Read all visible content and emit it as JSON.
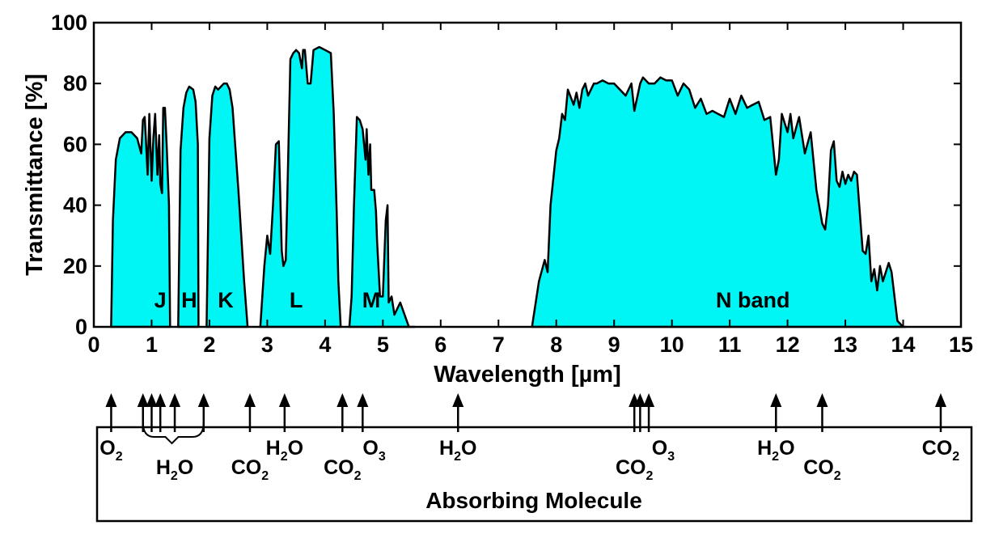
{
  "chart_data": {
    "type": "area",
    "xlabel": "Wavelength [µm]",
    "ylabel": "Transmittance [%]",
    "xlim": [
      0,
      15
    ],
    "ylim": [
      0,
      100
    ],
    "xticks": [
      0,
      1,
      2,
      3,
      4,
      5,
      6,
      7,
      8,
      9,
      10,
      11,
      12,
      13,
      14,
      15
    ],
    "yticks": [
      0,
      20,
      40,
      60,
      80,
      100
    ],
    "fill_color": "#00f5f5",
    "line_color": "#000000",
    "series": [
      {
        "x": [
          0.3,
          0.33,
          0.38,
          0.45,
          0.55,
          0.65,
          0.75,
          0.82,
          0.85,
          0.88,
          0.9,
          0.93,
          0.96,
          1.0,
          1.03,
          1.06,
          1.1,
          1.13,
          1.15,
          1.18,
          1.2,
          1.23,
          1.26,
          1.3,
          1.32
        ],
        "y": [
          0,
          35,
          55,
          62,
          64,
          64,
          62,
          57,
          68,
          69,
          62,
          50,
          70,
          48,
          62,
          70,
          50,
          63,
          47,
          44,
          72,
          72,
          60,
          40,
          0
        ]
      },
      {
        "x": [
          1.46,
          1.5,
          1.55,
          1.6,
          1.65,
          1.72,
          1.76,
          1.8,
          1.81
        ],
        "y": [
          0,
          58,
          72,
          77,
          79,
          78,
          74,
          60,
          0
        ]
      },
      {
        "x": [
          1.95,
          2.0,
          2.05,
          2.1,
          2.15,
          2.2,
          2.25,
          2.3,
          2.35,
          2.4,
          2.5,
          2.6,
          2.66
        ],
        "y": [
          0,
          62,
          76,
          79,
          78,
          79,
          80,
          80,
          78,
          72,
          45,
          15,
          0
        ]
      },
      {
        "x": [
          2.88,
          2.95,
          3.0,
          3.05,
          3.1,
          3.15,
          3.2,
          3.25,
          3.28,
          3.32,
          3.35,
          3.4,
          3.45,
          3.5,
          3.55,
          3.6,
          3.62,
          3.65,
          3.7,
          3.75,
          3.8,
          3.9,
          4.0,
          4.1,
          4.15,
          4.2,
          4.23,
          4.27
        ],
        "y": [
          0,
          20,
          30,
          24,
          40,
          60,
          61,
          25,
          20,
          22,
          45,
          88,
          90,
          91,
          90,
          85,
          91,
          91,
          80,
          80,
          91,
          92,
          91,
          90,
          70,
          38,
          15,
          0
        ]
      },
      {
        "x": [
          4.42,
          4.46,
          4.5,
          4.55,
          4.6,
          4.65,
          4.7,
          4.72,
          4.75,
          4.78,
          4.8,
          4.85,
          4.88,
          4.9,
          4.95,
          5.0,
          5.05,
          5.08,
          5.1,
          5.15,
          5.2,
          5.3,
          5.45,
          5.55
        ],
        "y": [
          0,
          10,
          40,
          69,
          68,
          65,
          55,
          65,
          50,
          60,
          45,
          45,
          38,
          28,
          10,
          10,
          35,
          40,
          8,
          10,
          4,
          8,
          0,
          0
        ]
      },
      {
        "x": [
          7.58,
          7.7,
          7.8,
          7.85,
          7.9,
          8.0,
          8.05,
          8.1,
          8.15,
          8.2,
          8.3,
          8.35,
          8.4,
          8.45,
          8.5,
          8.55,
          8.6,
          8.65,
          8.7,
          8.8,
          8.9,
          9.0,
          9.2,
          9.3,
          9.35,
          9.45,
          9.5,
          9.6,
          9.7,
          9.8,
          9.9,
          10.0,
          10.1,
          10.2,
          10.3,
          10.4,
          10.5,
          10.6,
          10.7,
          10.8,
          10.9,
          11.0,
          11.1,
          11.2,
          11.3,
          11.4,
          11.5,
          11.6,
          11.7,
          11.8,
          11.85,
          11.9,
          12.0,
          12.05,
          12.1,
          12.2,
          12.3,
          12.4,
          12.5,
          12.6,
          12.65,
          12.7,
          12.75,
          12.8,
          12.85,
          12.9,
          12.95,
          13.0,
          13.05,
          13.1,
          13.15,
          13.2,
          13.3,
          13.35,
          13.4,
          13.45,
          13.5,
          13.55,
          13.6,
          13.65,
          13.7,
          13.75,
          13.8,
          13.85,
          13.9,
          14.0,
          14.05
        ],
        "y": [
          0,
          15,
          22,
          18,
          40,
          58,
          62,
          70,
          68,
          78,
          73,
          77,
          72,
          78,
          80,
          76,
          78,
          80,
          80,
          81,
          80,
          80,
          76,
          80,
          71,
          80,
          82,
          80,
          80,
          82,
          81,
          81,
          76,
          80,
          78,
          72,
          75,
          70,
          71,
          70,
          69,
          75,
          70,
          76,
          72,
          73,
          74,
          68,
          69,
          50,
          55,
          70,
          64,
          70,
          62,
          69,
          57,
          64,
          45,
          34,
          32,
          40,
          58,
          61,
          48,
          46,
          51,
          47,
          50,
          48,
          51,
          50,
          25,
          24,
          30,
          15,
          19,
          12,
          20,
          15,
          18,
          21,
          18,
          10,
          2,
          0,
          0
        ]
      }
    ],
    "band_labels": [
      {
        "text": "J",
        "x": 1.15,
        "y": 8
      },
      {
        "text": "H",
        "x": 1.65,
        "y": 8
      },
      {
        "text": "K",
        "x": 2.28,
        "y": 8
      },
      {
        "text": "L",
        "x": 3.5,
        "y": 8
      },
      {
        "text": "M",
        "x": 4.8,
        "y": 8
      },
      {
        "text": "N band",
        "x": 11.4,
        "y": 8
      }
    ]
  },
  "molecules": {
    "title": "Absorbing Molecule",
    "arrows_um": [
      0.3,
      0.85,
      1.0,
      1.15,
      1.4,
      1.9,
      2.7,
      3.3,
      4.3,
      4.65,
      6.3,
      9.35,
      9.45,
      9.6,
      11.8,
      12.6,
      14.65
    ],
    "labels": [
      {
        "main": "O",
        "sub": "2",
        "tail": "",
        "x_um": 0.3,
        "row": 1
      },
      {
        "main": "H",
        "sub": "2",
        "tail": "O",
        "x_um": 1.4,
        "row": 2
      },
      {
        "main": "CO",
        "sub": "2",
        "tail": "",
        "x_um": 2.7,
        "row": 2
      },
      {
        "main": "H",
        "sub": "2",
        "tail": "O",
        "x_um": 3.3,
        "row": 1
      },
      {
        "main": "CO",
        "sub": "2",
        "tail": "",
        "x_um": 4.3,
        "row": 2
      },
      {
        "main": "O",
        "sub": "3",
        "tail": "",
        "x_um": 4.85,
        "row": 1
      },
      {
        "main": "H",
        "sub": "2",
        "tail": "O",
        "x_um": 6.3,
        "row": 1
      },
      {
        "main": "CO",
        "sub": "2",
        "tail": "",
        "x_um": 9.35,
        "row": 2
      },
      {
        "main": "O",
        "sub": "3",
        "tail": "",
        "x_um": 9.85,
        "row": 1
      },
      {
        "main": "H",
        "sub": "2",
        "tail": "O",
        "x_um": 11.8,
        "row": 1
      },
      {
        "main": "CO",
        "sub": "2",
        "tail": "",
        "x_um": 12.6,
        "row": 2
      },
      {
        "main": "CO",
        "sub": "2",
        "tail": "",
        "x_um": 14.65,
        "row": 1
      }
    ]
  }
}
